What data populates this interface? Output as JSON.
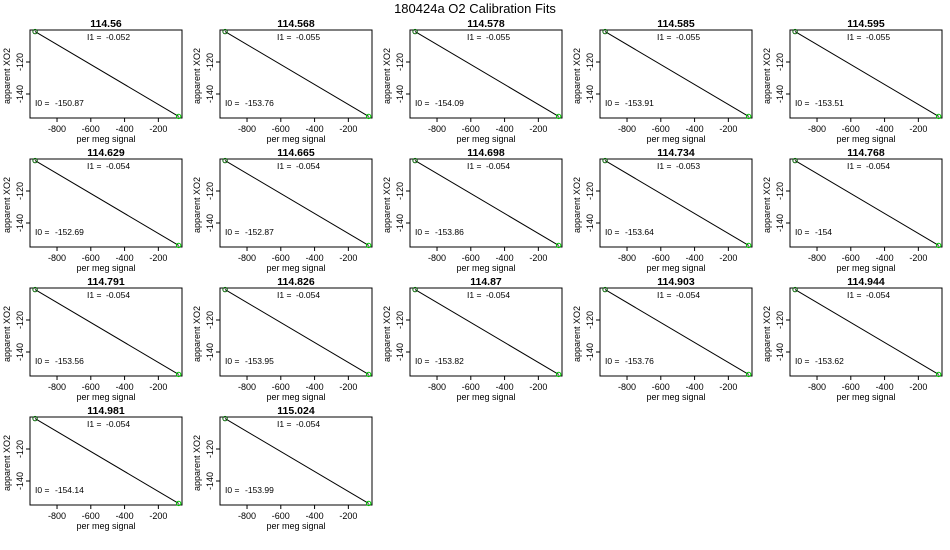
{
  "title": "180424a   O2 Calibration Fits",
  "colors": {
    "fit_line": "#000000",
    "first_point": "#006400",
    "last_point": "#00cc00",
    "frame": "#000000"
  },
  "chart_data": {
    "type": "scatter",
    "title": "180424a   O2 Calibration Fits",
    "xlabel": "per meg signal",
    "ylabel": "apparent XO2",
    "xlim": [
      -960,
      -60
    ],
    "ylim": [
      -155,
      -100
    ],
    "xticks": [
      -800,
      -600,
      -400,
      -200
    ],
    "xtick_labels": [
      "-800",
      "-600",
      "-400",
      "-200"
    ],
    "yticks": [
      -120,
      -140
    ],
    "ytick_labels": [
      "-120",
      "-140"
    ],
    "i1_label": "I1 =",
    "i0_label": "I0 =",
    "panels": [
      {
        "title": "114.56",
        "i1": "-0.052",
        "i0": "-150.87",
        "points": [
          {
            "x": -930,
            "y": -101
          },
          {
            "x": -80,
            "y": -154
          }
        ]
      },
      {
        "title": "114.568",
        "i1": "-0.055",
        "i0": "-153.76",
        "points": [
          {
            "x": -930,
            "y": -101
          },
          {
            "x": -80,
            "y": -154
          }
        ]
      },
      {
        "title": "114.578",
        "i1": "-0.055",
        "i0": "-154.09",
        "points": [
          {
            "x": -930,
            "y": -101
          },
          {
            "x": -80,
            "y": -154
          }
        ]
      },
      {
        "title": "114.585",
        "i1": "-0.055",
        "i0": "-153.91",
        "points": [
          {
            "x": -930,
            "y": -101
          },
          {
            "x": -80,
            "y": -154
          }
        ]
      },
      {
        "title": "114.595",
        "i1": "-0.055",
        "i0": "-153.51",
        "points": [
          {
            "x": -930,
            "y": -101
          },
          {
            "x": -80,
            "y": -154
          }
        ]
      },
      {
        "title": "114.629",
        "i1": "-0.054",
        "i0": "-152.69",
        "points": [
          {
            "x": -930,
            "y": -101
          },
          {
            "x": -80,
            "y": -154
          }
        ]
      },
      {
        "title": "114.665",
        "i1": "-0.054",
        "i0": "-152.87",
        "points": [
          {
            "x": -930,
            "y": -101
          },
          {
            "x": -80,
            "y": -154
          }
        ]
      },
      {
        "title": "114.698",
        "i1": "-0.054",
        "i0": "-153.86",
        "points": [
          {
            "x": -930,
            "y": -101
          },
          {
            "x": -80,
            "y": -154
          }
        ]
      },
      {
        "title": "114.734",
        "i1": "-0.053",
        "i0": "-153.64",
        "points": [
          {
            "x": -930,
            "y": -101
          },
          {
            "x": -80,
            "y": -154
          }
        ]
      },
      {
        "title": "114.768",
        "i1": "-0.054",
        "i0": "-154",
        "points": [
          {
            "x": -930,
            "y": -101
          },
          {
            "x": -80,
            "y": -154
          }
        ]
      },
      {
        "title": "114.791",
        "i1": "-0.054",
        "i0": "-153.56",
        "points": [
          {
            "x": -930,
            "y": -101
          },
          {
            "x": -80,
            "y": -154
          }
        ]
      },
      {
        "title": "114.826",
        "i1": "-0.054",
        "i0": "-153.95",
        "points": [
          {
            "x": -930,
            "y": -101
          },
          {
            "x": -80,
            "y": -154
          }
        ]
      },
      {
        "title": "114.87",
        "i1": "-0.054",
        "i0": "-153.82",
        "points": [
          {
            "x": -930,
            "y": -101
          },
          {
            "x": -80,
            "y": -154
          }
        ]
      },
      {
        "title": "114.903",
        "i1": "-0.054",
        "i0": "-153.76",
        "points": [
          {
            "x": -930,
            "y": -101
          },
          {
            "x": -80,
            "y": -154
          }
        ]
      },
      {
        "title": "114.944",
        "i1": "-0.054",
        "i0": "-153.62",
        "points": [
          {
            "x": -930,
            "y": -101
          },
          {
            "x": -80,
            "y": -154
          }
        ]
      },
      {
        "title": "114.981",
        "i1": "-0.054",
        "i0": "-154.14",
        "points": [
          {
            "x": -930,
            "y": -101
          },
          {
            "x": -80,
            "y": -154
          }
        ]
      },
      {
        "title": "115.024",
        "i1": "-0.054",
        "i0": "-153.99",
        "points": [
          {
            "x": -930,
            "y": -101
          },
          {
            "x": -80,
            "y": -154
          }
        ]
      }
    ]
  }
}
